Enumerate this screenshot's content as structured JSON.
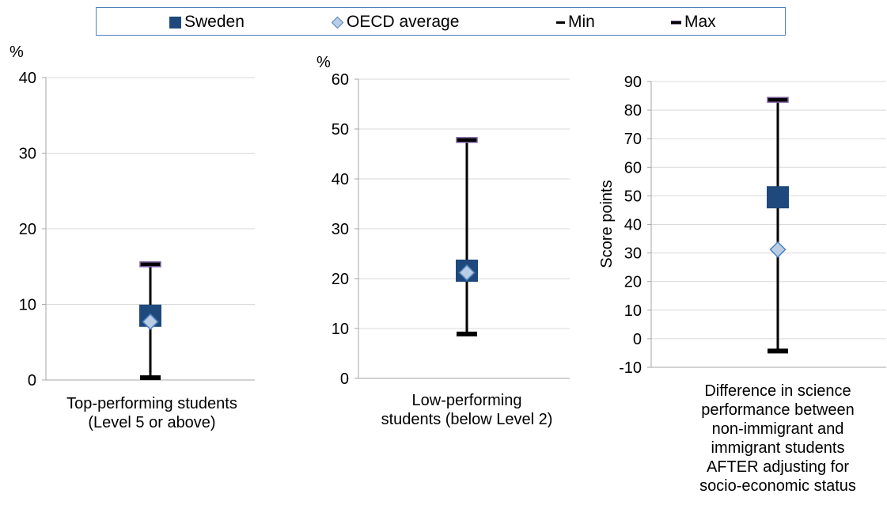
{
  "legend": {
    "sweden": "Sweden",
    "oecd": "OECD average",
    "min": "Min",
    "max": "Max"
  },
  "colors": {
    "sweden": "#1f497d",
    "oecd_fill": "#b9cde5",
    "oecd_stroke": "#4f81bd",
    "min": "#000000",
    "max": "#8064a2",
    "whisker": "#000000",
    "grid": "#d9d9d9",
    "legend_border": "#4f81bd"
  },
  "chart_data": [
    {
      "type": "scatter",
      "title": "",
      "ylabel": "%",
      "ylim": [
        0,
        40
      ],
      "yticks": [
        0,
        10,
        20,
        30,
        40
      ],
      "category": [
        "Top-performing students",
        "(Level 5 or above)"
      ],
      "sweden": 8.5,
      "oecd_average": 7.7,
      "min": 0.3,
      "max": 15.3
    },
    {
      "type": "scatter",
      "title": "",
      "ylabel": "%",
      "ylim": [
        0,
        60
      ],
      "yticks": [
        0,
        10,
        20,
        30,
        40,
        50,
        60
      ],
      "category": [
        "Low-performing",
        "students (below Level 2)"
      ],
      "sweden": 21.6,
      "oecd_average": 21.2,
      "min": 8.9,
      "max": 47.8
    },
    {
      "type": "scatter",
      "title": "",
      "ylabel": "Score points",
      "ylim": [
        -10,
        90
      ],
      "yticks": [
        -10,
        0,
        10,
        20,
        30,
        40,
        50,
        60,
        70,
        80,
        90
      ],
      "category": [
        "Difference in science",
        "performance between",
        "non-immigrant and",
        "immigrant students",
        "AFTER adjusting for",
        "socio-economic status"
      ],
      "sweden": 49.5,
      "oecd_average": 31.2,
      "min": -4.3,
      "max": 83.6
    }
  ]
}
